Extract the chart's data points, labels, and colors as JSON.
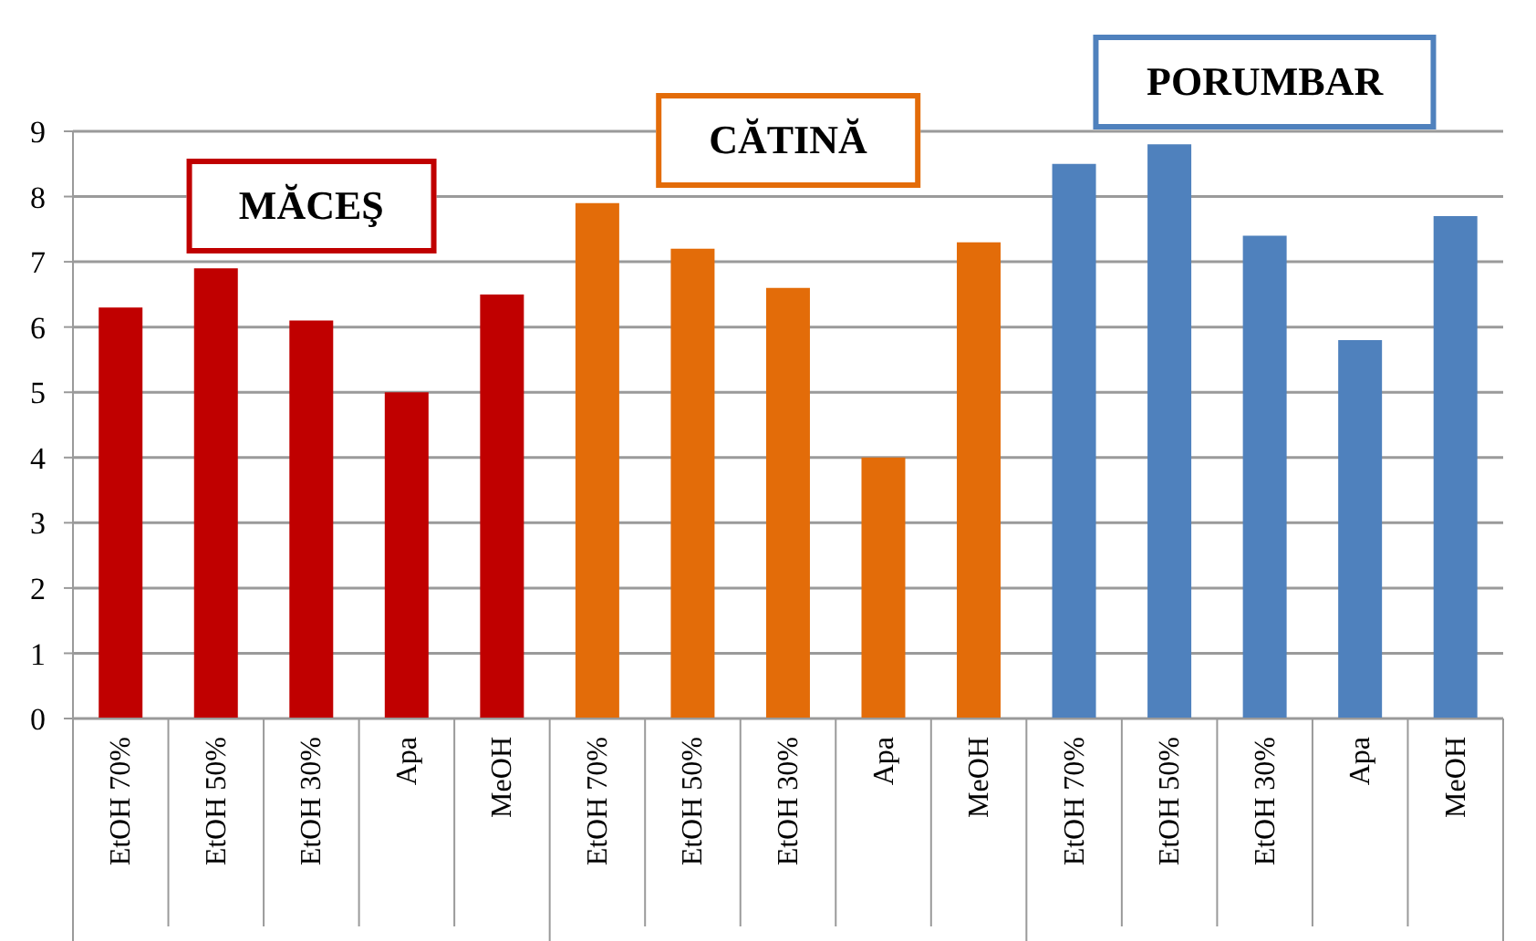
{
  "chart_data": {
    "type": "bar",
    "categories": [
      "EtOH 70%",
      "EtOH 50%",
      "EtOH 30%",
      "Apa",
      "MeOH",
      "EtOH 70%",
      "EtOH 50%",
      "EtOH 30%",
      "Apa",
      "MeOH",
      "EtOH 70%",
      "EtOH 50%",
      "EtOH 30%",
      "Apa",
      "MeOH"
    ],
    "series": [
      {
        "name": "MĂCEŞ",
        "color": "#c00000",
        "values": [
          6.3,
          6.9,
          6.1,
          5.0,
          6.5,
          null,
          null,
          null,
          null,
          null,
          null,
          null,
          null,
          null,
          null
        ]
      },
      {
        "name": "CĂTINĂ",
        "color": "#e36c09",
        "values": [
          null,
          null,
          null,
          null,
          null,
          7.9,
          7.2,
          6.6,
          4.0,
          7.3,
          null,
          null,
          null,
          null,
          null
        ]
      },
      {
        "name": "PORUMBAR",
        "color": "#4f81bd",
        "values": [
          null,
          null,
          null,
          null,
          null,
          null,
          null,
          null,
          null,
          null,
          8.5,
          8.8,
          7.4,
          5.8,
          7.7
        ]
      }
    ],
    "ylim": [
      0,
      9
    ],
    "yticks": [
      0,
      1,
      2,
      3,
      4,
      5,
      6,
      7,
      8,
      9
    ],
    "grid": "y"
  }
}
